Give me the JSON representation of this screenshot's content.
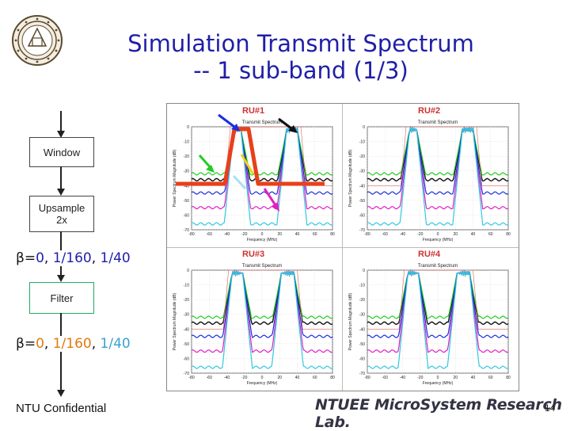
{
  "title_line1": "Simulation Transmit Spectrum",
  "title_line2": "-- 1 sub-band (1/3)",
  "blocks": {
    "window": "Window",
    "upsample_l1": "Upsample",
    "upsample_l2": "2x",
    "filter": "Filter"
  },
  "beta_label": {
    "prefix": "β=",
    "v1": "0",
    "sep1": ", ",
    "v2": "1/160",
    "sep2": ", ",
    "v3": "1/40"
  },
  "plots": [
    {
      "label": "RU#1",
      "plot_title": "Transmit Spectrum"
    },
    {
      "label": "RU#2",
      "plot_title": "Transmit Spectrum"
    },
    {
      "label": "RU#3",
      "plot_title": "Transmit Spectrum"
    },
    {
      "label": "RU#4",
      "plot_title": "Transmit Spectrum"
    }
  ],
  "axes": {
    "xlabel": "Frequency (MHz)",
    "ylabel": "Power Spectrum Magnitude (dB)",
    "xticks": [
      "-80",
      "-60",
      "-40",
      "-20",
      "0",
      "20",
      "40",
      "60",
      "80"
    ],
    "yticks": [
      "0",
      "-10",
      "-20",
      "-30",
      "-40",
      "-50",
      "-60",
      "-70"
    ]
  },
  "colors": {
    "title": "#1f1fa8",
    "beta_blue": "#1f1fa8",
    "beta_orange": "#e07a10",
    "beta_lightblue": "#3aa0d0",
    "black": "#111111",
    "green": "#22cc22",
    "magenta": "#e020c0",
    "blue": "#1a2ee0",
    "cyan": "#30c8e0",
    "mask_red": "#e8401a"
  },
  "footer": {
    "left": "NTU Confidential",
    "lab": "NTUEE MicroSystem Research Lab.",
    "page": "14"
  }
}
